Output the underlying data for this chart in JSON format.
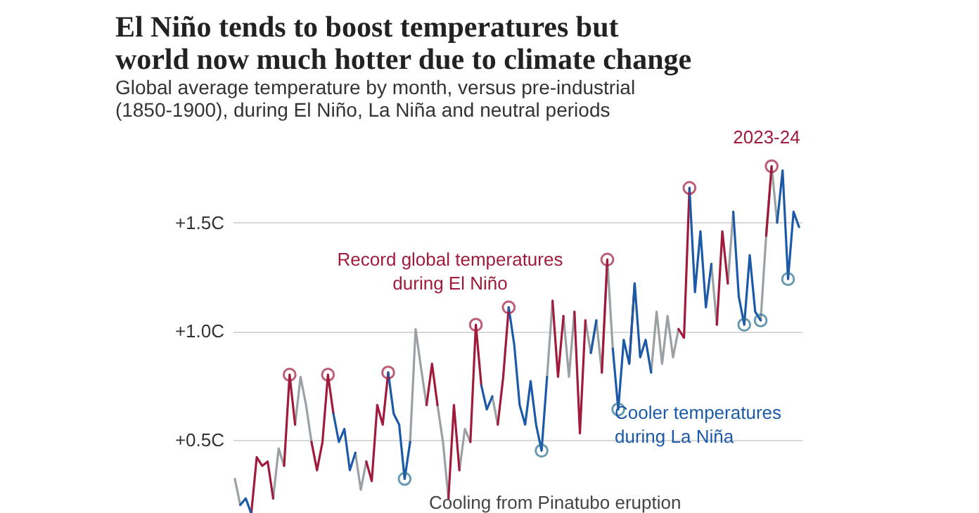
{
  "chart_data": {
    "type": "line",
    "title": "El Niño tends to boost temperatures but world now much hotter due to climate change",
    "subtitle": "Global average temperature by month, versus pre-industrial (1850-1900), during El Niño, La Niña and neutral periods",
    "categories": [
      null,
      null,
      null,
      null,
      null,
      null,
      null,
      null,
      null,
      null,
      null,
      null,
      null,
      null,
      null,
      null,
      null,
      null,
      null,
      null,
      null,
      null,
      null,
      null,
      null,
      null,
      null,
      null,
      null,
      null,
      null,
      null,
      null,
      null,
      null,
      null,
      null,
      null,
      null,
      null,
      null,
      null,
      null,
      null,
      null,
      null,
      null,
      null,
      null,
      null,
      null,
      null,
      null,
      null,
      null,
      null,
      null,
      null,
      null,
      null,
      null,
      null,
      null,
      null,
      null,
      null,
      null,
      null,
      null,
      null,
      null,
      null,
      null,
      null,
      null,
      null,
      null,
      null,
      null,
      null,
      null,
      null,
      null,
      null,
      null,
      null,
      null,
      null,
      null,
      null,
      null,
      null,
      null,
      null,
      null,
      null,
      null,
      null,
      null,
      null,
      null,
      null,
      null,
      null
    ],
    "series": [
      {
        "color": "#9aa0a3",
        "values": [
          0.32,
          0.2,
          null,
          null,
          null,
          null,
          null,
          0.23,
          0.46,
          0.38,
          null,
          0.57,
          0.79,
          0.66,
          0.49,
          null,
          null,
          null,
          null,
          null,
          null,
          null,
          0.44,
          0.27,
          0.4,
          null,
          null,
          null,
          null,
          null,
          null,
          null,
          0.49,
          1.01,
          0.83,
          0.66,
          null,
          0.66,
          0.49,
          0.23,
          null,
          0.36,
          0.55,
          0.49,
          null,
          null,
          null,
          0.7,
          0.57,
          null,
          null,
          null,
          null,
          null,
          null,
          null,
          null,
          0.79,
          1.14,
          null,
          1.07,
          0.79,
          1.09,
          null,
          1.05,
          0.9,
          1.05,
          0.81,
          1.33,
          0.92,
          null,
          null,
          null,
          null,
          null,
          null,
          0.81,
          1.09,
          0.85,
          1.07,
          0.88,
          1.01,
          null,
          null,
          null,
          null,
          null,
          1.31,
          1.03,
          null,
          1.22,
          1.55,
          null,
          null,
          null,
          null,
          1.05,
          1.44,
          1.76,
          1.5,
          null,
          null,
          null,
          null
        ]
      },
      {
        "color": "#a01a3c",
        "values": [
          null,
          null,
          null,
          0.16,
          0.42,
          0.38,
          0.4,
          0.23,
          null,
          0.38,
          0.8,
          0.57,
          null,
          null,
          0.49,
          0.36,
          0.49,
          0.8,
          0.62,
          null,
          null,
          null,
          null,
          null,
          0.4,
          0.31,
          0.66,
          0.57,
          0.81,
          null,
          null,
          null,
          null,
          null,
          null,
          0.66,
          0.85,
          0.66,
          null,
          0.23,
          0.66,
          0.36,
          null,
          0.49,
          1.03,
          0.75,
          null,
          null,
          0.57,
          0.79,
          1.11,
          null,
          null,
          null,
          null,
          null,
          null,
          null,
          1.14,
          0.79,
          1.07,
          null,
          1.09,
          0.53,
          1.05,
          null,
          null,
          0.81,
          1.33,
          null,
          null,
          null,
          0.85,
          1.22,
          null,
          null,
          null,
          null,
          null,
          null,
          null,
          1.01,
          0.97,
          1.66,
          null,
          null,
          null,
          null,
          1.03,
          1.46,
          1.22,
          null,
          null,
          null,
          null,
          null,
          null,
          1.44,
          1.76,
          null,
          null,
          null,
          null,
          null
        ]
      },
      {
        "color": "#1c5aa8",
        "values": [
          null,
          0.2,
          0.23,
          0.16,
          null,
          null,
          null,
          null,
          null,
          null,
          null,
          null,
          null,
          null,
          null,
          null,
          null,
          null,
          0.62,
          0.49,
          0.55,
          0.36,
          0.44,
          null,
          null,
          null,
          null,
          null,
          0.81,
          0.62,
          0.57,
          0.32,
          0.49,
          null,
          null,
          null,
          null,
          null,
          null,
          null,
          null,
          null,
          null,
          null,
          null,
          0.75,
          0.64,
          0.7,
          null,
          null,
          1.11,
          0.94,
          0.66,
          0.57,
          0.77,
          0.57,
          0.45,
          0.79,
          null,
          null,
          null,
          null,
          null,
          null,
          null,
          0.9,
          1.05,
          null,
          null,
          0.92,
          0.64,
          0.96,
          0.85,
          1.22,
          0.88,
          0.96,
          0.81,
          null,
          null,
          null,
          null,
          null,
          null,
          1.66,
          1.18,
          1.46,
          1.11,
          1.31,
          null,
          null,
          null,
          1.55,
          1.16,
          1.03,
          1.35,
          1.09,
          1.05,
          null,
          null,
          1.5,
          1.74,
          1.24,
          1.55,
          1.48
        ]
      },
      {
        "type": "scatter",
        "marker": "circle",
        "color": "#a01a3c",
        "values": [
          null,
          null,
          null,
          null,
          null,
          null,
          null,
          null,
          null,
          null,
          0.8,
          null,
          null,
          null,
          null,
          null,
          null,
          0.8,
          null,
          null,
          null,
          null,
          null,
          null,
          null,
          null,
          null,
          null,
          0.81,
          null,
          null,
          null,
          null,
          null,
          null,
          null,
          null,
          null,
          null,
          null,
          null,
          null,
          null,
          null,
          1.03,
          null,
          null,
          null,
          null,
          null,
          1.11,
          null,
          null,
          null,
          null,
          null,
          null,
          null,
          null,
          null,
          null,
          null,
          null,
          null,
          null,
          null,
          null,
          null,
          1.33,
          null,
          null,
          null,
          null,
          null,
          null,
          null,
          null,
          null,
          null,
          null,
          null,
          null,
          null,
          1.66,
          null,
          null,
          null,
          null,
          null,
          null,
          null,
          null,
          null,
          null,
          null,
          null,
          null,
          null,
          1.76,
          null,
          null,
          null,
          null,
          null
        ]
      },
      {
        "type": "scatter",
        "marker": "circle",
        "color": "#2a6f8f",
        "values": [
          null,
          null,
          null,
          null,
          null,
          null,
          null,
          null,
          null,
          null,
          null,
          null,
          null,
          null,
          null,
          null,
          null,
          null,
          null,
          null,
          null,
          null,
          null,
          null,
          null,
          null,
          null,
          null,
          null,
          null,
          null,
          0.32,
          null,
          null,
          null,
          null,
          null,
          null,
          null,
          null,
          null,
          null,
          null,
          null,
          null,
          null,
          null,
          null,
          null,
          null,
          null,
          null,
          null,
          null,
          null,
          null,
          0.45,
          null,
          null,
          null,
          null,
          null,
          null,
          null,
          null,
          null,
          null,
          null,
          null,
          null,
          0.64,
          null,
          null,
          null,
          null,
          null,
          null,
          null,
          null,
          null,
          null,
          null,
          null,
          null,
          null,
          null,
          null,
          null,
          null,
          null,
          null,
          null,
          null,
          1.03,
          null,
          null,
          1.05,
          null,
          null,
          null,
          null,
          1.24,
          null,
          null
        ]
      }
    ],
    "ylim": [
      0.15,
      1.93
    ],
    "yticks": [
      {
        "value": 0.5,
        "label": "+0.5C"
      },
      {
        "value": 1.0,
        "label": "+1.0C"
      },
      {
        "value": 1.5,
        "label": "+1.5C"
      }
    ],
    "grid": "y",
    "tick_labels": "y",
    "annotations": [
      "2023-24",
      "Record global temperatures during El Niño",
      "Cooler temperatures during La Niña",
      "Cooling from Pinatubo eruption"
    ]
  }
}
